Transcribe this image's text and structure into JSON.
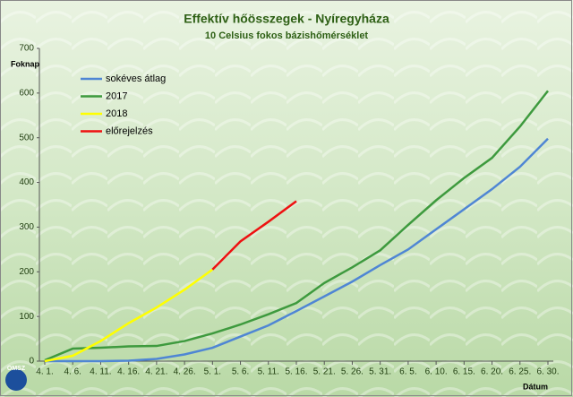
{
  "chart_data": {
    "type": "line",
    "title": "Effektív hőösszegek - Nyíregyháza",
    "subtitle": "10 Celsius fokos bázishőmérséklet",
    "y_label": "Foknap",
    "x_label": "Dátum",
    "logo": "OMSZ",
    "categories": [
      "4. 1.",
      "4. 6.",
      "4. 11.",
      "4. 16.",
      "4. 21.",
      "4. 26.",
      "5. 1.",
      "5. 6.",
      "5. 11.",
      "5. 16.",
      "5. 21.",
      "5. 26.",
      "5. 31.",
      "6. 5.",
      "6. 10.",
      "6. 15.",
      "6. 20.",
      "6. 25.",
      "6. 30."
    ],
    "series": [
      {
        "name": "sokéves átlag",
        "color": "#4f86d4",
        "values": [
          0,
          0,
          0,
          1,
          5,
          15,
          30,
          55,
          80,
          112,
          145,
          178,
          215,
          250,
          295,
          340,
          385,
          435,
          498
        ]
      },
      {
        "name": "2017",
        "color": "#3e9a3e",
        "values": [
          2,
          28,
          30,
          33,
          34,
          45,
          62,
          82,
          105,
          130,
          175,
          210,
          248,
          305,
          360,
          410,
          455,
          525,
          605
        ]
      },
      {
        "name": "2018",
        "color": "#ffff00",
        "values": [
          0,
          12,
          45,
          85,
          120,
          160,
          205,
          null,
          null,
          null,
          null,
          null,
          null,
          null,
          null,
          null,
          null,
          null,
          null
        ]
      },
      {
        "name": "előrejelzés",
        "color": "#ee1111",
        "values": [
          null,
          null,
          null,
          null,
          null,
          null,
          205,
          268,
          312,
          358,
          null,
          null,
          null,
          null,
          null,
          null,
          null,
          null,
          null
        ]
      }
    ],
    "ylim": [
      0,
      700
    ],
    "yticks": [
      0,
      100,
      200,
      300,
      400,
      500,
      600,
      700
    ],
    "legend": "top-left"
  }
}
